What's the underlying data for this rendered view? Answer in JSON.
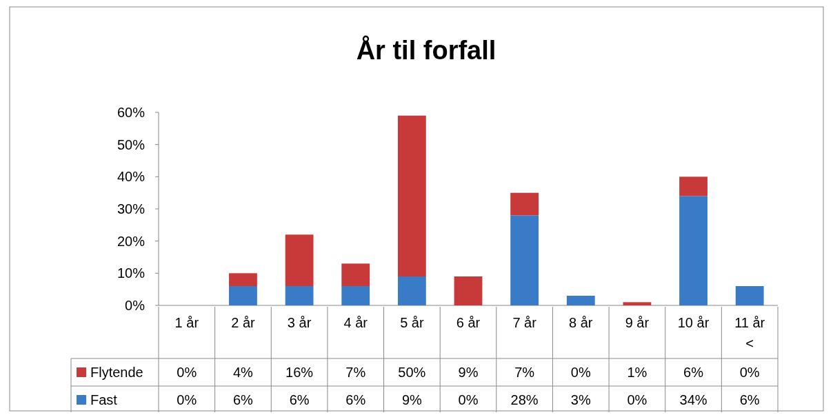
{
  "chart_data": {
    "type": "bar",
    "title": "År til forfall",
    "stacked": true,
    "categories": [
      "1 år",
      "2 år",
      "3 år",
      "4 år",
      "5 år",
      "6 år",
      "7 år",
      "8 år",
      "9 år",
      "10 år",
      "11 år <"
    ],
    "series": [
      {
        "name": "Fast",
        "color": "#3a7bc8",
        "values": [
          0,
          6,
          6,
          6,
          9,
          0,
          28,
          3,
          0,
          34,
          6
        ],
        "value_labels": [
          "0%",
          "6%",
          "6%",
          "6%",
          "9%",
          "0%",
          "28%",
          "3%",
          "0%",
          "34%",
          "6%"
        ]
      },
      {
        "name": "Flytende",
        "color": "#c83a3a",
        "values": [
          0,
          4,
          16,
          7,
          50,
          9,
          7,
          0,
          1,
          6,
          0
        ],
        "value_labels": [
          "0%",
          "4%",
          "16%",
          "7%",
          "50%",
          "9%",
          "7%",
          "0%",
          "1%",
          "6%",
          "0%"
        ]
      }
    ],
    "ylim": [
      0,
      60
    ],
    "yticks": [
      {
        "value": 0,
        "label": "0%"
      },
      {
        "value": 10,
        "label": "10%"
      },
      {
        "value": 20,
        "label": "20%"
      },
      {
        "value": 30,
        "label": "30%"
      },
      {
        "value": 40,
        "label": "40%"
      },
      {
        "value": 50,
        "label": "50%"
      },
      {
        "value": 60,
        "label": "60%"
      }
    ],
    "grid": false,
    "legend": "bottom left"
  }
}
